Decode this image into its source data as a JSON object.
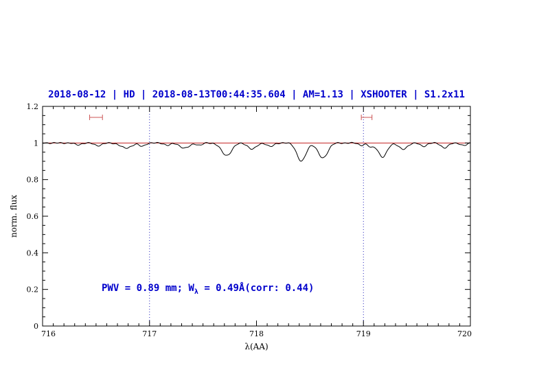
{
  "title": "2018-08-12 | HD | 2018-08-13T00:44:35.604 | AM=1.13 | XSHOOTER | S1.2x11",
  "annotation": {
    "pre": "PWV = 0.89 mm; W",
    "sub": "λ",
    "post": " = 0.49Å(corr: 0.44)"
  },
  "colors": {
    "title": "#0000cc",
    "annotation": "#0000cc",
    "spectrum": "#000000",
    "continuum": "#bb0000",
    "range_marker": "#cc5555",
    "reference_line": "#2222bb",
    "frame": "#000000"
  },
  "chart_data": {
    "type": "line",
    "title": "2018-08-12 | HD | 2018-08-13T00:44:35.604 | AM=1.13 | XSHOOTER | S1.2x11",
    "xlabel": "λ(AA)",
    "ylabel": "norm. flux",
    "xlim": [
      716,
      720
    ],
    "ylim": [
      0,
      1.2
    ],
    "grid": false,
    "xticks": {
      "major": [
        716,
        717,
        718,
        719,
        720
      ],
      "labels": [
        "716",
        "717",
        "718",
        "719",
        "720"
      ],
      "minor_step": 0.1
    },
    "yticks": {
      "major": [
        0,
        0.2,
        0.4,
        0.6,
        0.8,
        1.0,
        1.2
      ],
      "labels": [
        "0",
        "0.2",
        "0.4",
        "0.6",
        "0.8",
        "1",
        "1.2"
      ],
      "minor_step": 0.05
    },
    "series": [
      {
        "name": "observed normalized spectrum",
        "color": "#000000"
      },
      {
        "name": "continuum fit",
        "color": "#bb0000",
        "y": 1.0
      }
    ],
    "continuum_level": 1.0,
    "absorption_features": [
      {
        "center": 716.33,
        "depth": 0.01,
        "sigma": 0.03
      },
      {
        "center": 716.52,
        "depth": 0.014,
        "sigma": 0.035
      },
      {
        "center": 716.78,
        "depth": 0.028,
        "sigma": 0.05
      },
      {
        "center": 716.93,
        "depth": 0.018,
        "sigma": 0.028
      },
      {
        "center": 717.17,
        "depth": 0.012,
        "sigma": 0.03
      },
      {
        "center": 717.33,
        "depth": 0.028,
        "sigma": 0.045
      },
      {
        "center": 717.47,
        "depth": 0.012,
        "sigma": 0.025
      },
      {
        "center": 717.72,
        "depth": 0.068,
        "sigma": 0.048
      },
      {
        "center": 717.96,
        "depth": 0.034,
        "sigma": 0.038
      },
      {
        "center": 718.13,
        "depth": 0.02,
        "sigma": 0.03
      },
      {
        "center": 718.42,
        "depth": 0.1,
        "sigma": 0.042
      },
      {
        "center": 718.62,
        "depth": 0.082,
        "sigma": 0.045
      },
      {
        "center": 718.98,
        "depth": 0.012,
        "sigma": 0.025
      },
      {
        "center": 719.07,
        "depth": 0.022,
        "sigma": 0.028
      },
      {
        "center": 719.18,
        "depth": 0.078,
        "sigma": 0.04
      },
      {
        "center": 719.37,
        "depth": 0.035,
        "sigma": 0.038
      },
      {
        "center": 719.56,
        "depth": 0.018,
        "sigma": 0.03
      },
      {
        "center": 719.76,
        "depth": 0.026,
        "sigma": 0.034
      },
      {
        "center": 719.94,
        "depth": 0.014,
        "sigma": 0.028
      }
    ],
    "reference_vlines": {
      "x": [
        717,
        719
      ],
      "style": "dotted",
      "color": "#2222bb"
    },
    "range_markers": [
      {
        "x_center": 716.5,
        "x_halfwidth": 0.06,
        "y": 1.14
      },
      {
        "x_center": 719.03,
        "x_halfwidth": 0.05,
        "y": 1.14
      }
    ],
    "annotation": {
      "text": "PWV = 0.89 mm; W_λ = 0.49Å(corr: 0.44)",
      "x": 716.55,
      "y": 0.2,
      "color": "#0000cc"
    },
    "legend": "none"
  }
}
